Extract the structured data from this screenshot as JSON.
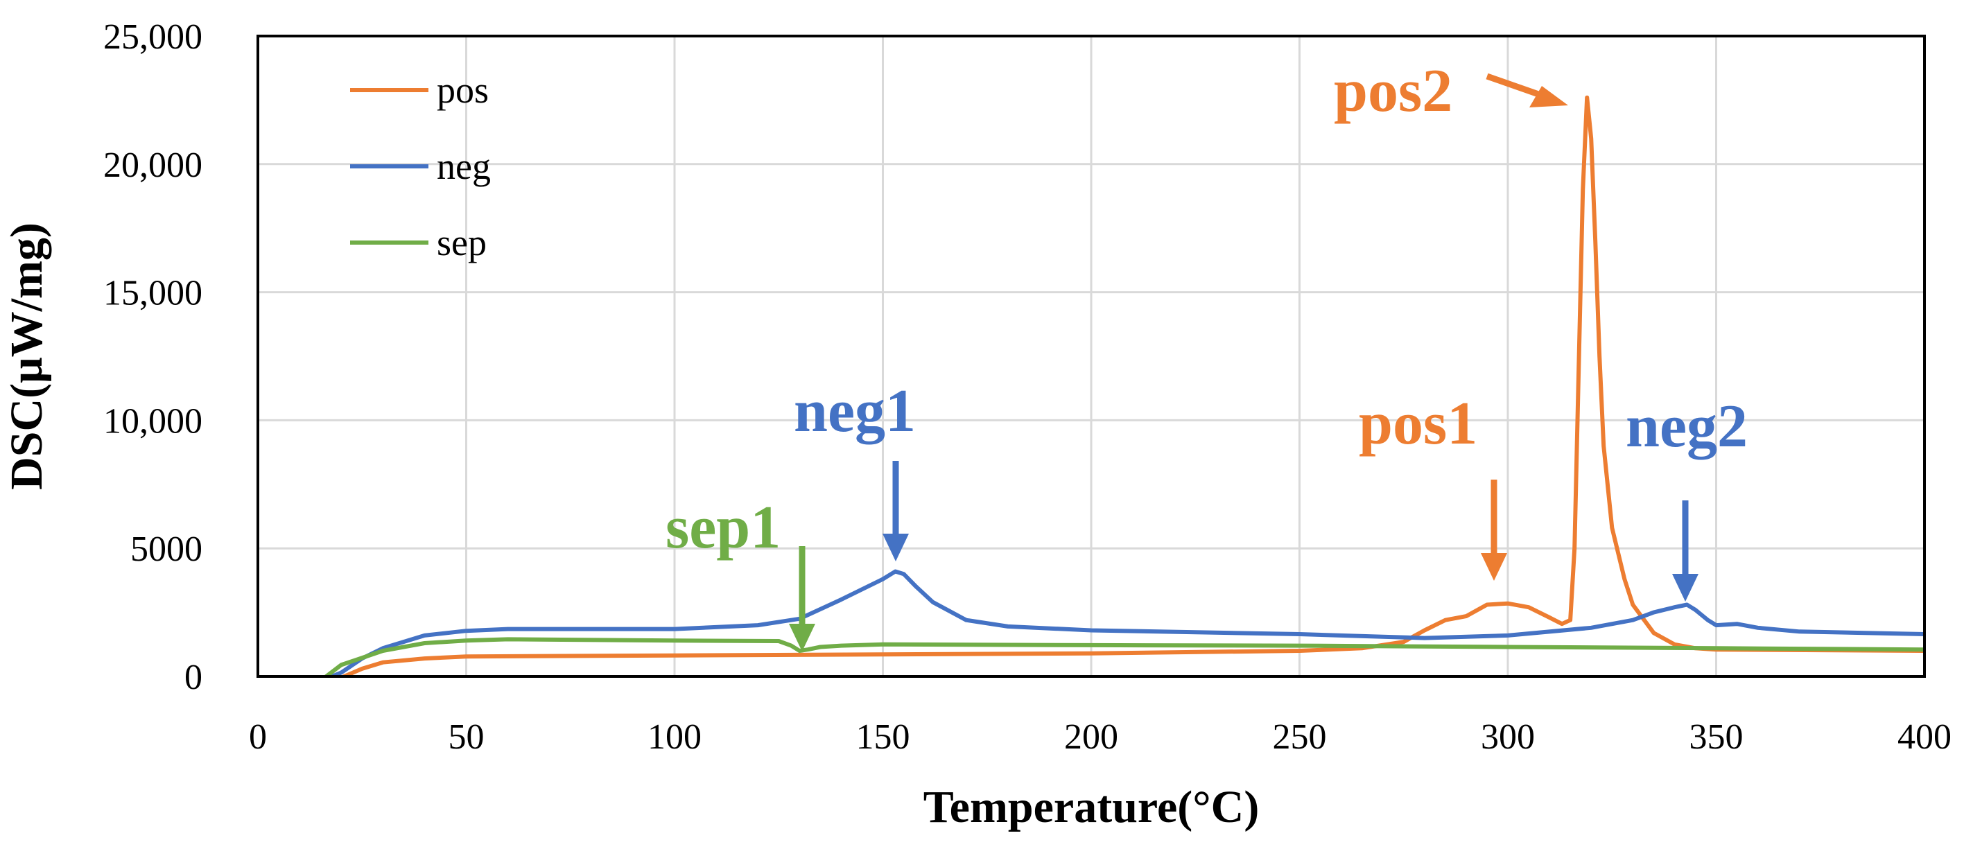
{
  "chart_data": {
    "type": "line",
    "title": "",
    "xlabel": "Temperature(°C)",
    "ylabel": "DSC(μW/mg)",
    "xlim": [
      0,
      400
    ],
    "ylim": [
      0,
      25000
    ],
    "x_ticks": [
      0,
      50,
      100,
      150,
      200,
      250,
      300,
      350,
      400
    ],
    "x_tick_labels": [
      "0",
      "50",
      "100",
      "150",
      "200",
      "250",
      "300",
      "350",
      "400"
    ],
    "y_ticks": [
      0,
      5000,
      10000,
      15000,
      20000,
      25000
    ],
    "y_tick_labels": [
      "0",
      "5000",
      "10,000",
      "15,000",
      "20,000",
      "25,000"
    ],
    "grid": true,
    "legend_position": "top-left",
    "series": [
      {
        "name": "pos",
        "color": "#ED7D31",
        "x": [
          20,
          25,
          30,
          40,
          50,
          100,
          150,
          200,
          250,
          265,
          275,
          280,
          285,
          290,
          295,
          300,
          305,
          310,
          313,
          315,
          316,
          317,
          318,
          319,
          320,
          321,
          322,
          323,
          325,
          328,
          330,
          335,
          340,
          345,
          350,
          400
        ],
        "values": [
          -50,
          300,
          550,
          700,
          780,
          820,
          860,
          900,
          1000,
          1100,
          1350,
          1800,
          2200,
          2350,
          2800,
          2850,
          2700,
          2300,
          2050,
          2200,
          5000,
          12000,
          19000,
          22600,
          21000,
          17000,
          12500,
          9000,
          5800,
          3800,
          2800,
          1700,
          1250,
          1100,
          1050,
          1000
        ]
      },
      {
        "name": "neg",
        "color": "#4472C4",
        "x": [
          17,
          20,
          25,
          30,
          40,
          50,
          60,
          100,
          120,
          130,
          140,
          150,
          153,
          155,
          158,
          162,
          170,
          180,
          200,
          250,
          270,
          280,
          300,
          320,
          330,
          335,
          340,
          343,
          345,
          348,
          350,
          355,
          360,
          370,
          400
        ],
        "values": [
          -50,
          150,
          700,
          1100,
          1600,
          1780,
          1850,
          1850,
          2000,
          2250,
          3000,
          3800,
          4100,
          4000,
          3500,
          2900,
          2200,
          1950,
          1800,
          1650,
          1550,
          1500,
          1600,
          1900,
          2200,
          2500,
          2700,
          2800,
          2600,
          2200,
          2000,
          2050,
          1900,
          1750,
          1650
        ]
      },
      {
        "name": "sep",
        "color": "#70AD47",
        "x": [
          13,
          16,
          20,
          30,
          40,
          50,
          60,
          100,
          125,
          128,
          130,
          132,
          135,
          140,
          150,
          200,
          250,
          300,
          350,
          400
        ],
        "values": [
          -50,
          -50,
          450,
          1000,
          1300,
          1400,
          1450,
          1400,
          1380,
          1200,
          1000,
          1050,
          1150,
          1200,
          1250,
          1220,
          1200,
          1150,
          1100,
          1050
        ]
      }
    ],
    "annotations": [
      {
        "label": "pos2",
        "color": "#ED7D31"
      },
      {
        "label": "pos1",
        "color": "#ED7D31"
      },
      {
        "label": "neg1",
        "color": "#4472C4"
      },
      {
        "label": "neg2",
        "color": "#4472C4"
      },
      {
        "label": "sep1",
        "color": "#70AD47"
      }
    ]
  }
}
